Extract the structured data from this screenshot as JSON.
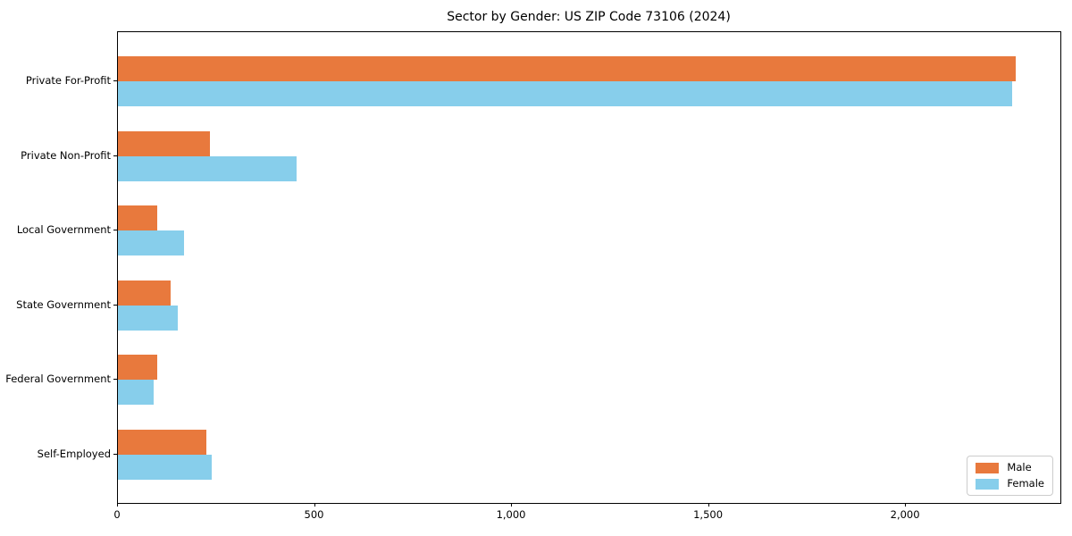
{
  "chart_data": {
    "type": "bar",
    "orientation": "horizontal",
    "title": "Sector by Gender: US ZIP Code 73106 (2024)",
    "xlabel": "",
    "ylabel": "",
    "categories": [
      "Private For-Profit",
      "Private Non-Profit",
      "Local Government",
      "State Government",
      "Federal Government",
      "Self-Employed"
    ],
    "series": [
      {
        "name": "Male",
        "color": "#e8793d",
        "values": [
          2278,
          233,
          100,
          134,
          100,
          224
        ]
      },
      {
        "name": "Female",
        "color": "#87ceeb",
        "values": [
          2270,
          453,
          168,
          152,
          90,
          238
        ]
      }
    ],
    "xlim": [
      0,
      2392
    ],
    "xticks": [
      0,
      500,
      1000,
      1500,
      2000
    ],
    "xtick_labels": [
      "0",
      "500",
      "1,000",
      "1,500",
      "2,000"
    ],
    "grid": false,
    "legend_position": "lower right"
  },
  "legend": {
    "items": [
      {
        "label": "Male",
        "color": "#e8793d"
      },
      {
        "label": "Female",
        "color": "#87ceeb"
      }
    ]
  },
  "colors": {
    "male": "#e8793d",
    "female": "#87ceeb",
    "spine": "#000000",
    "background": "#ffffff",
    "legend_border": "#cccccc"
  }
}
